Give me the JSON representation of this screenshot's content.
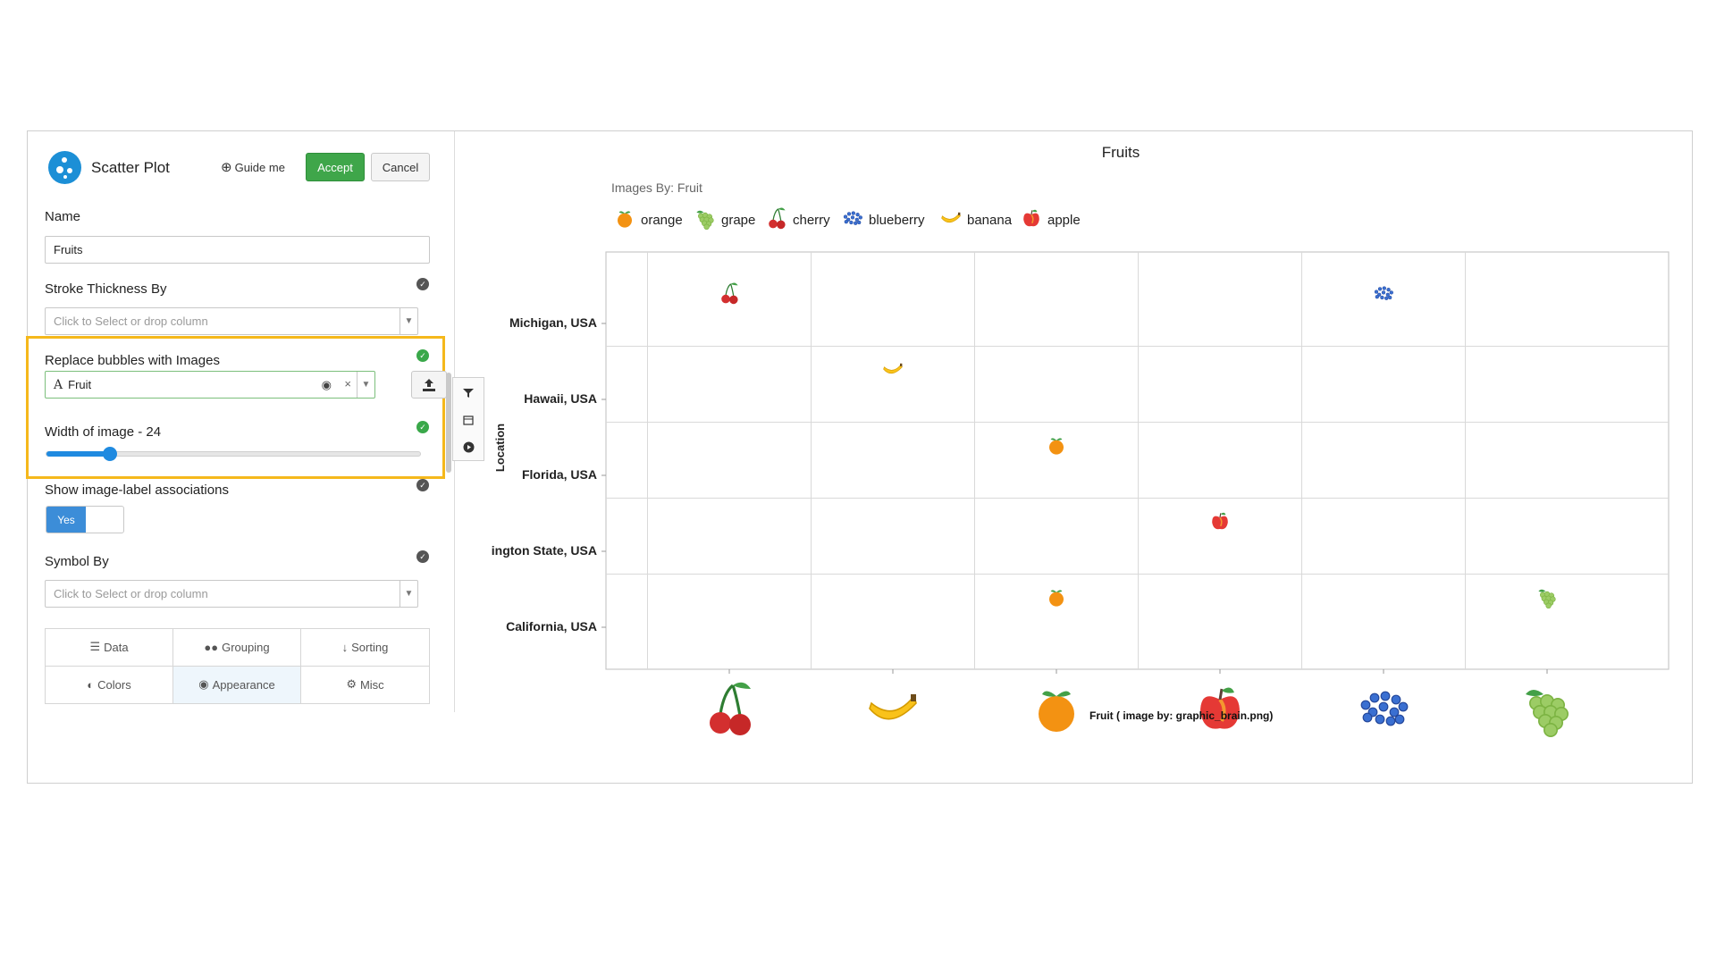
{
  "panel": {
    "title": "Scatter Plot",
    "guide_label": "Guide me",
    "accept_label": "Accept",
    "cancel_label": "Cancel",
    "name_label": "Name",
    "name_value": "Fruits",
    "stroke_label": "Stroke Thickness By",
    "stroke_placeholder": "Click to Select or drop column",
    "replace_label": "Replace bubbles with Images",
    "replace_value": "Fruit",
    "width_label": "Width of image - 24",
    "width_value": 24,
    "width_fraction": 0.17,
    "assoc_label": "Show image-label associations",
    "assoc_toggle": "Yes",
    "symbol_label": "Symbol By",
    "symbol_placeholder": "Click to Select or drop column",
    "tabs": [
      {
        "label": "Data",
        "icon": "database-icon"
      },
      {
        "label": "Grouping",
        "icon": "users-icon"
      },
      {
        "label": "Sorting",
        "icon": "sort-numeric-icon"
      },
      {
        "label": "Colors",
        "icon": "contrast-icon"
      },
      {
        "label": "Appearance",
        "icon": "eye-icon"
      },
      {
        "label": "Misc",
        "icon": "gear-icon"
      }
    ],
    "active_tab": "Appearance"
  },
  "colors": {
    "accent": "#3fa64a",
    "brand": "#1c8fd6",
    "highlight": "#f5b81b",
    "toggle": "#3c8dd8",
    "slider": "#1f8ae0"
  },
  "chart_data": {
    "type": "scatter",
    "title": "Fruits",
    "legend_title": "Images By: Fruit",
    "legend": [
      "orange",
      "grape",
      "cherry",
      "blueberry",
      "banana",
      "apple"
    ],
    "legend_placement": "top-left",
    "xlabel": "Fruit ( image by: graphic_brain.png)",
    "ylabel": "Location",
    "x_categories": [
      "cherry",
      "banana",
      "orange",
      "apple",
      "blueberry",
      "grape"
    ],
    "y_categories": [
      "Michigan, USA",
      "Hawaii, USA",
      "Florida, USA",
      "ington State, USA",
      "California, USA"
    ],
    "grid": true,
    "points": [
      {
        "x": "cherry",
        "y": "Michigan, USA"
      },
      {
        "x": "blueberry",
        "y": "Michigan, USA"
      },
      {
        "x": "banana",
        "y": "Hawaii, USA"
      },
      {
        "x": "orange",
        "y": "Florida, USA"
      },
      {
        "x": "apple",
        "y": "ington State, USA"
      },
      {
        "x": "orange",
        "y": "California, USA"
      },
      {
        "x": "grape",
        "y": "California, USA"
      }
    ]
  }
}
